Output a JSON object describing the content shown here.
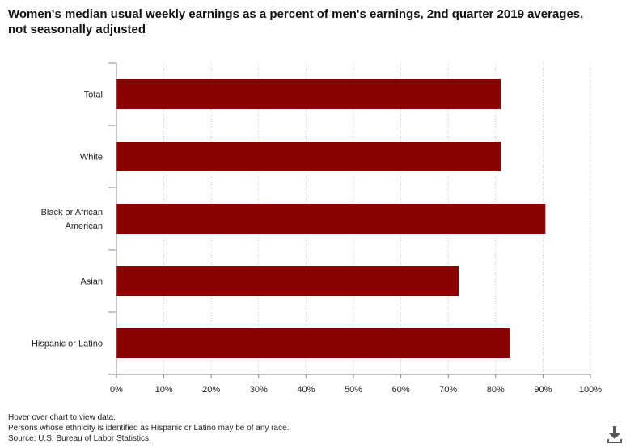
{
  "chart_data": {
    "type": "bar",
    "orientation": "horizontal",
    "title": "Women's median usual weekly earnings as a percent of men's earnings, 2nd quarter 2019 averages, not seasonally adjusted",
    "categories": [
      [
        "Total"
      ],
      [
        "White"
      ],
      [
        "Black or African",
        "American"
      ],
      [
        "Asian"
      ],
      [
        "Hispanic or Latino"
      ]
    ],
    "values": [
      81.1,
      81.1,
      90.5,
      72.3,
      83.0
    ],
    "xlim": [
      0,
      100
    ],
    "xticks": [
      0,
      10,
      20,
      30,
      40,
      50,
      60,
      70,
      80,
      90,
      100
    ],
    "tick_suffix": "%",
    "xlabel": "",
    "ylabel": "",
    "grid": true,
    "legend": "none",
    "colors": {
      "bar": "#8b0000",
      "grid": "#c8c8c8",
      "axis": "#888888"
    }
  },
  "footnotes": {
    "hover_hint": "Hover over chart to view data.",
    "ethnicity_note": "Persons whose ethnicity is identified as Hispanic or Latino may be of any race.",
    "source": "Source: U.S. Bureau of Labor Statistics."
  },
  "icons": {
    "download": "download-icon"
  }
}
